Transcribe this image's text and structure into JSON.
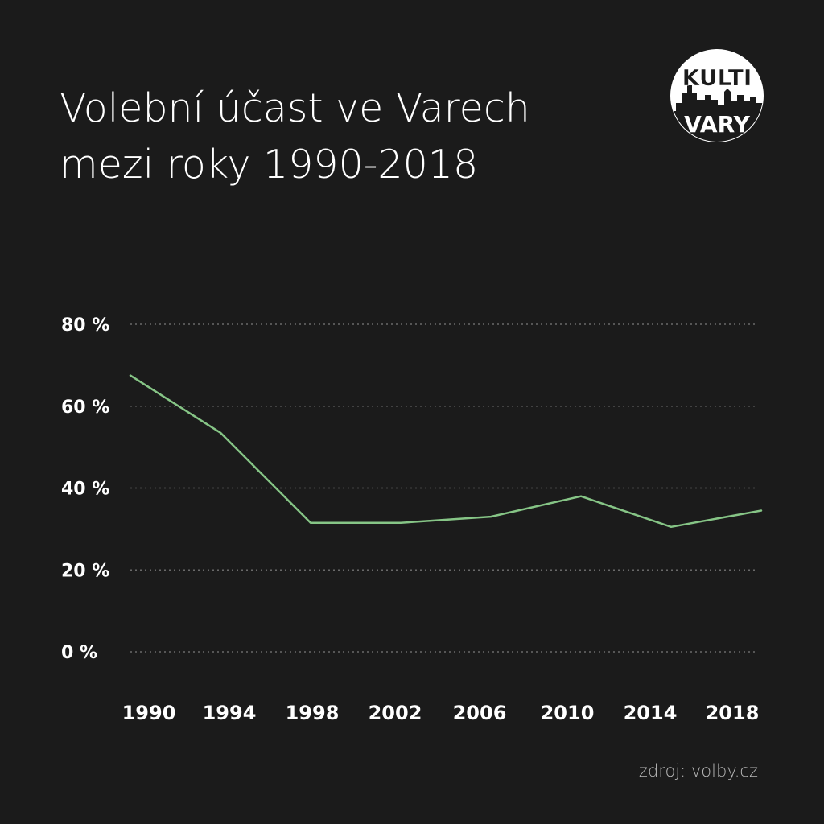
{
  "title_line1": "Volební účast ve Varech",
  "title_line2": "mezi roky 1990-2018",
  "logo": {
    "top": "KULTI",
    "bottom": "VARY"
  },
  "source": "zdroj: volby.cz",
  "chart_data": {
    "type": "line",
    "x": [
      1990,
      1994,
      1998,
      2002,
      2006,
      2010,
      2014,
      2018
    ],
    "xtick_labels": [
      "1990",
      "1994",
      "1998",
      "2002",
      "2006",
      "2010",
      "2014",
      "2018"
    ],
    "series": [
      {
        "values": [
          67.5,
          53.5,
          31.5,
          31.5,
          33,
          38,
          30.5,
          34.5
        ]
      }
    ],
    "ylim": [
      0,
      80
    ],
    "yticks": [
      0,
      20,
      40,
      60,
      80
    ],
    "ytick_labels": [
      "0 %",
      "20 %",
      "40 %",
      "60 %",
      "80 %"
    ],
    "grid": true,
    "colors": {
      "line": "#86c586",
      "grid": "#6a6a6a",
      "background": "#1b1b1b"
    }
  }
}
